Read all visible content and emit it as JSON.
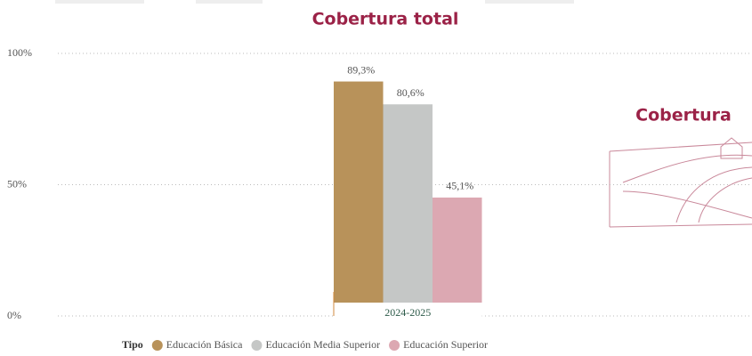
{
  "chart_data": {
    "type": "bar",
    "title": "Cobertura total",
    "categories": [
      "2024-2025"
    ],
    "series": [
      {
        "name": "Educación Básica",
        "color": "#b8925a",
        "values": [
          89.3
        ],
        "value_labels": [
          "89,3%"
        ]
      },
      {
        "name": "Educación Media Superior",
        "color": "#c5c7c6",
        "values": [
          80.6
        ],
        "value_labels": [
          "80,6%"
        ]
      },
      {
        "name": "Educación Superior",
        "color": "#dca8b2",
        "values": [
          45.1
        ],
        "value_labels": [
          "45,1%"
        ]
      }
    ],
    "ylim": [
      0,
      100
    ],
    "yticks": [
      {
        "value": 0,
        "label": "0%"
      },
      {
        "value": 50,
        "label": "50%"
      },
      {
        "value": 100,
        "label": "100%"
      }
    ],
    "grid": true,
    "legend_title": "Tipo",
    "legend_position": "bottom",
    "annotation": "Cobertura"
  }
}
